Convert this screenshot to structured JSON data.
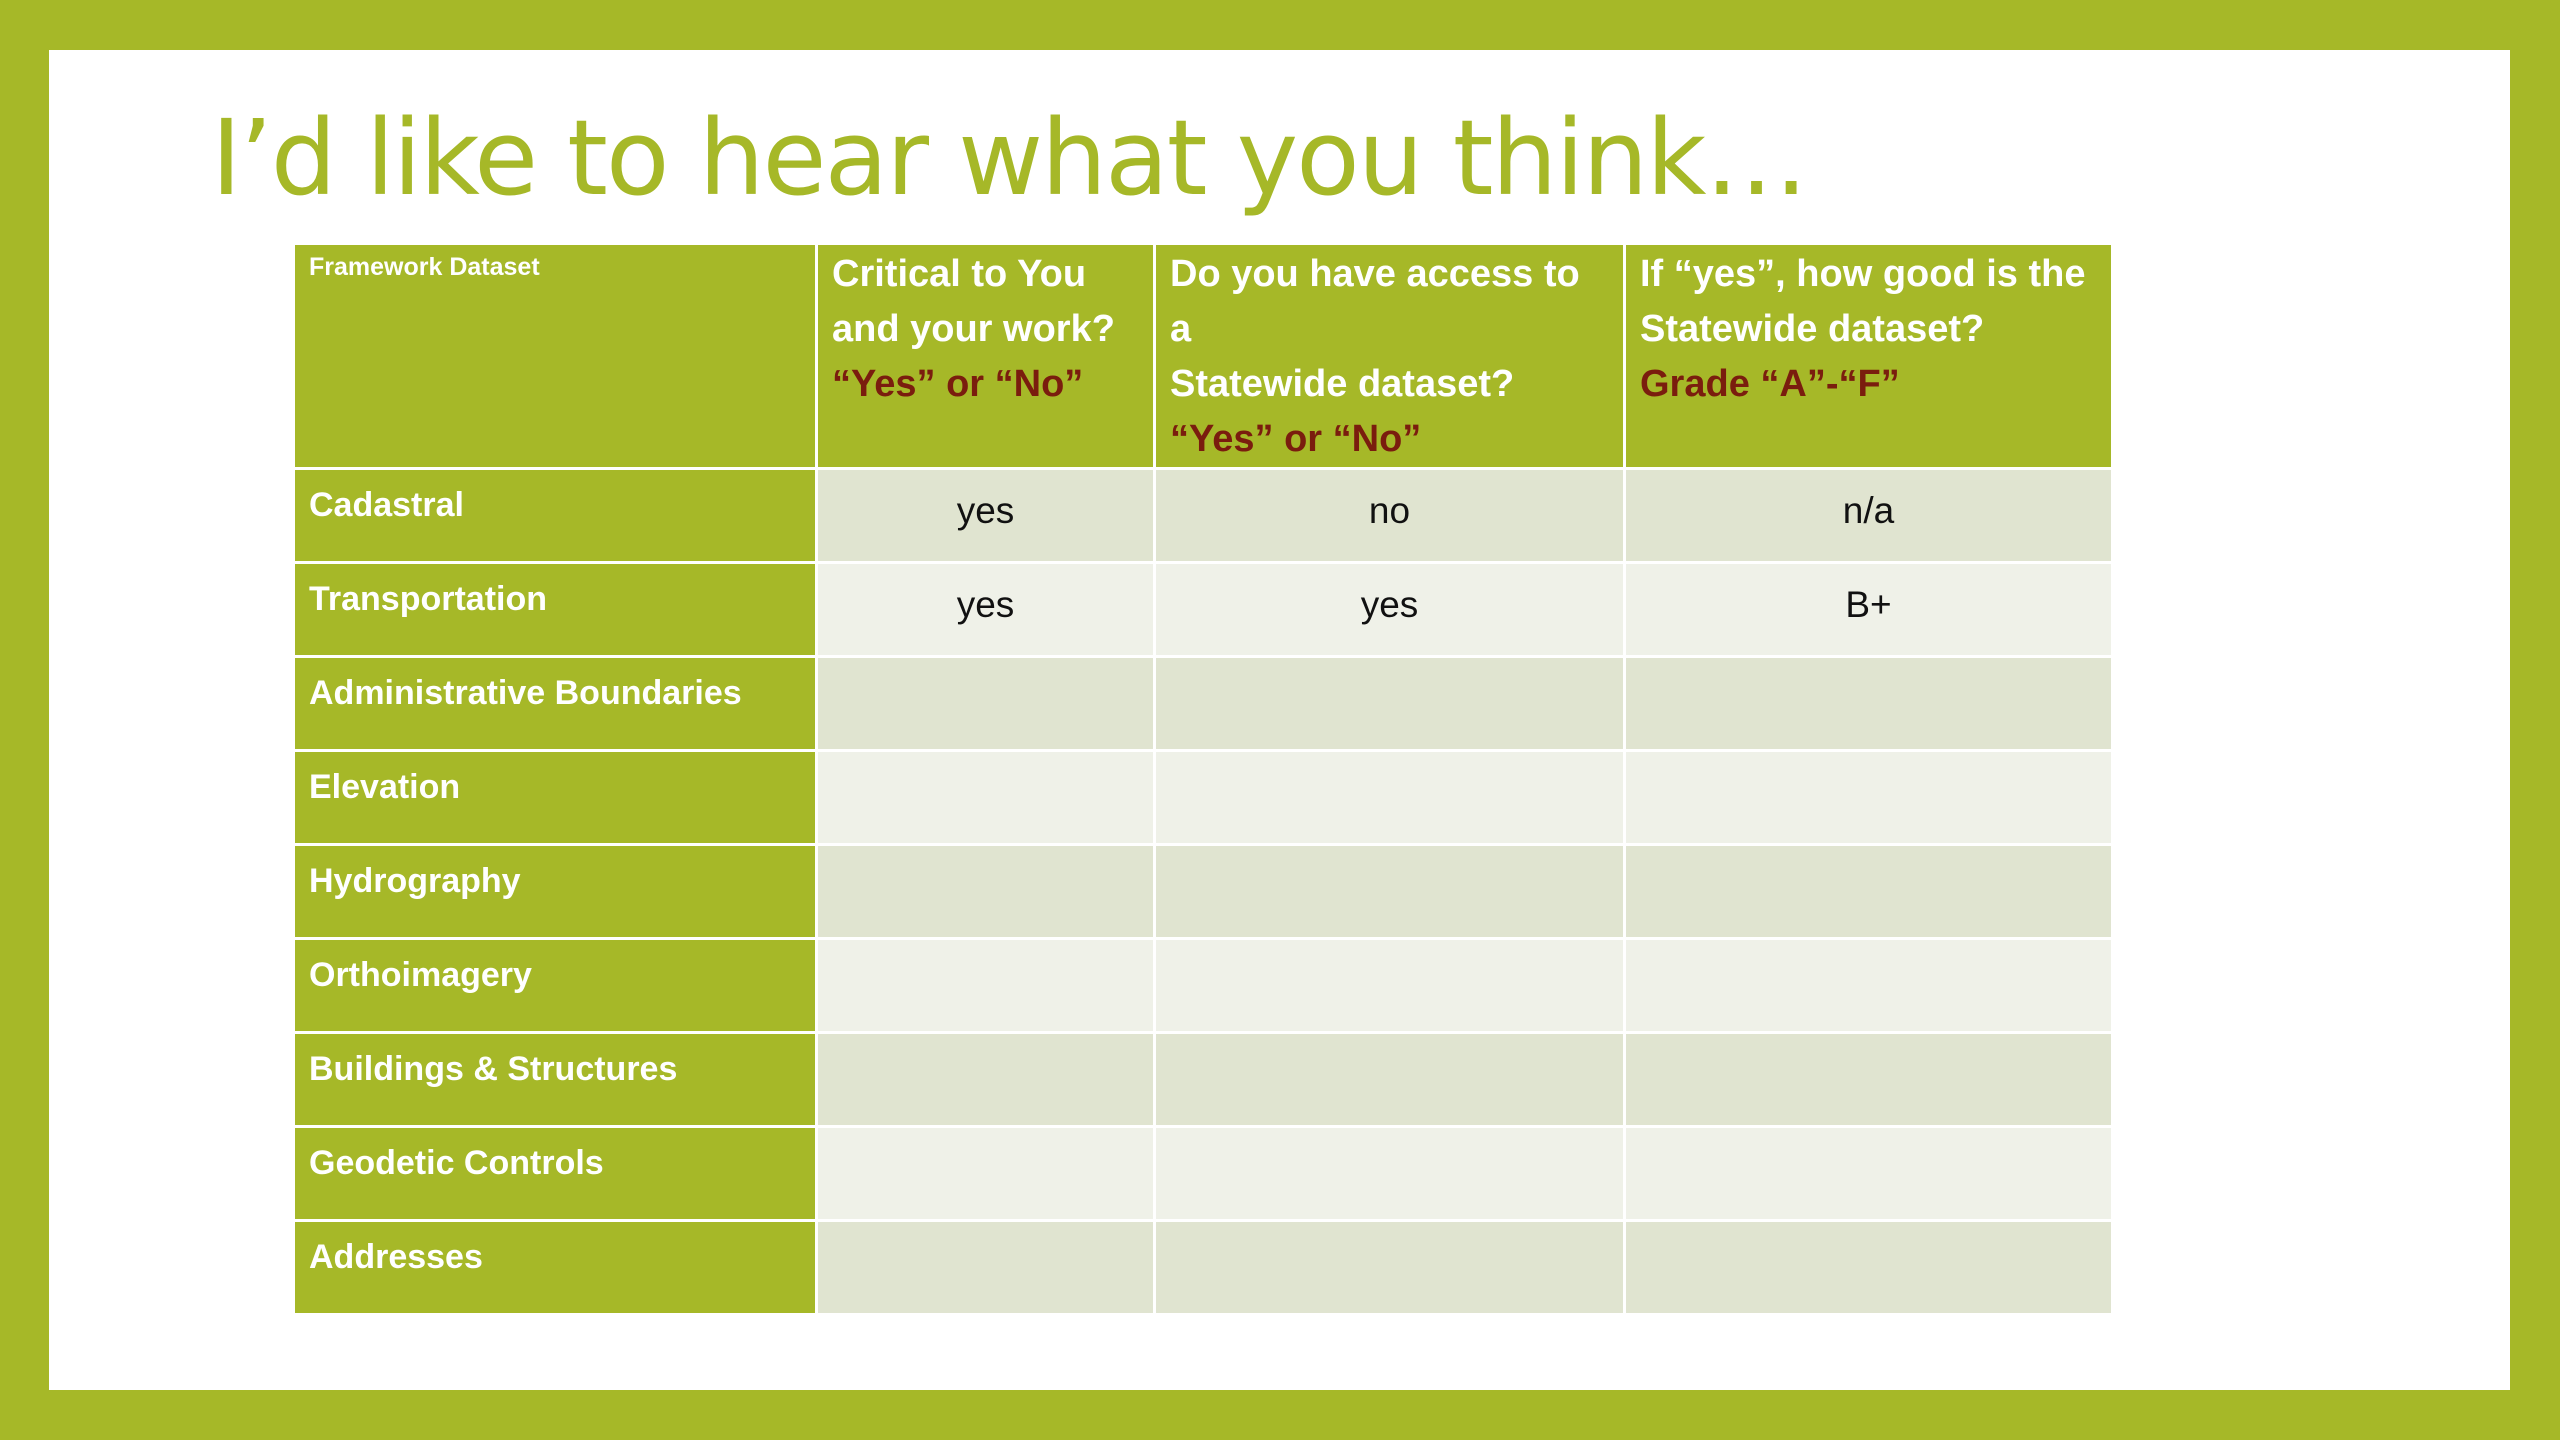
{
  "slide": {
    "title": "I’d like to hear what you think…"
  },
  "table": {
    "headers": [
      {
        "lines": [
          "Framework Dataset"
        ],
        "accent": ""
      },
      {
        "lines": [
          "Critical to You",
          "and your work?"
        ],
        "accent": "“Yes” or “No”"
      },
      {
        "lines": [
          "Do you have access to a",
          "Statewide dataset?"
        ],
        "accent": "“Yes” or “No”"
      },
      {
        "lines": [
          "If “yes”, how good is the",
          "Statewide dataset?"
        ],
        "accent": "Grade “A”-“F”"
      }
    ],
    "rows": [
      {
        "label": "Cadastral",
        "critical": "yes",
        "access": "no",
        "grade": "n/a"
      },
      {
        "label": "Transportation",
        "critical": "yes",
        "access": "yes",
        "grade": "B+"
      },
      {
        "label": "Administrative Boundaries",
        "critical": "",
        "access": "",
        "grade": ""
      },
      {
        "label": "Elevation",
        "critical": "",
        "access": "",
        "grade": ""
      },
      {
        "label": "Hydrography",
        "critical": "",
        "access": "",
        "grade": ""
      },
      {
        "label": "Orthoimagery",
        "critical": "",
        "access": "",
        "grade": ""
      },
      {
        "label": "Buildings & Structures",
        "critical": "",
        "access": "",
        "grade": ""
      },
      {
        "label": "Geodetic Controls",
        "critical": "",
        "access": "",
        "grade": ""
      },
      {
        "label": "Addresses",
        "critical": "",
        "access": "",
        "grade": ""
      }
    ]
  },
  "colors": {
    "frame": "#a6b828",
    "header_bg": "#a6b828",
    "accent_text": "#7a1d0e",
    "row_odd": "#e0e4d0",
    "row_even": "#eff1e8"
  }
}
